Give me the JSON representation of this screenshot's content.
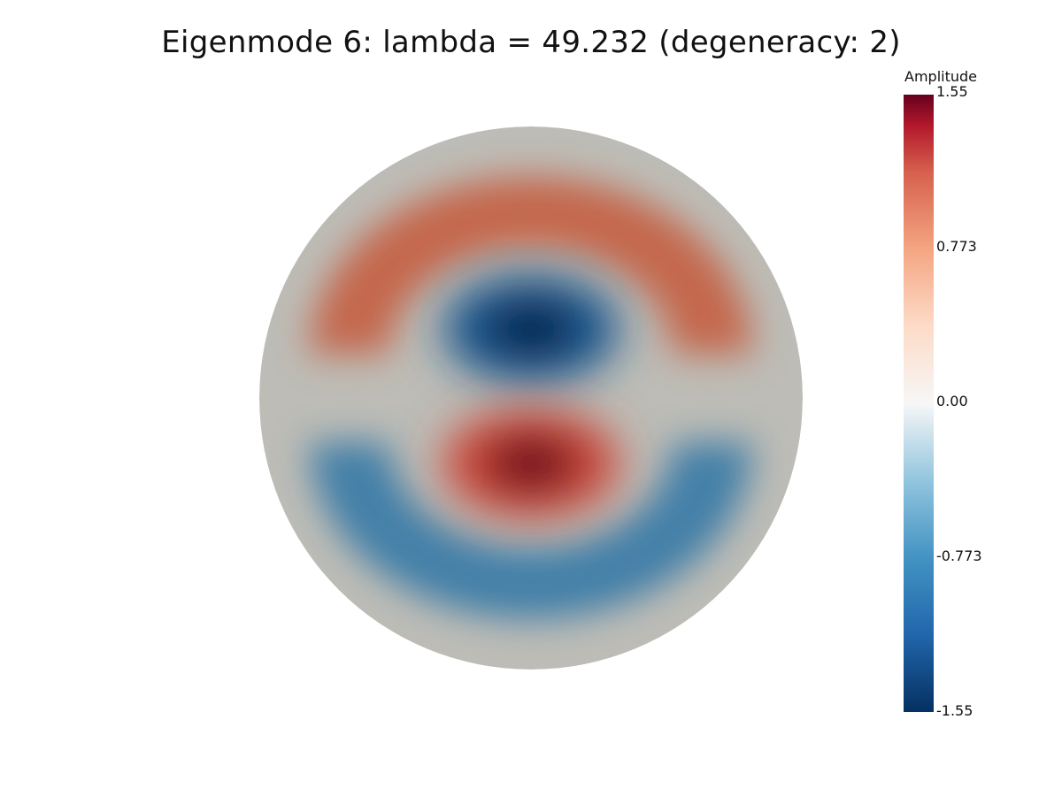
{
  "title": "Eigenmode 6: lambda = 49.232 (degeneracy: 2)",
  "colorbar": {
    "title": "Amplitude",
    "tick_labels": [
      "1.55",
      "0.773",
      "0.00",
      "-0.773",
      "-1.55"
    ],
    "min": -1.55,
    "max": 1.55
  },
  "colors": {
    "positive_max": "#67001f",
    "positive_mid": "#d6604d",
    "zero": "#f2f2f2",
    "negative_mid": "#4393c3",
    "negative_max": "#053061",
    "disk_boundary": "#bdbcb6"
  }
}
